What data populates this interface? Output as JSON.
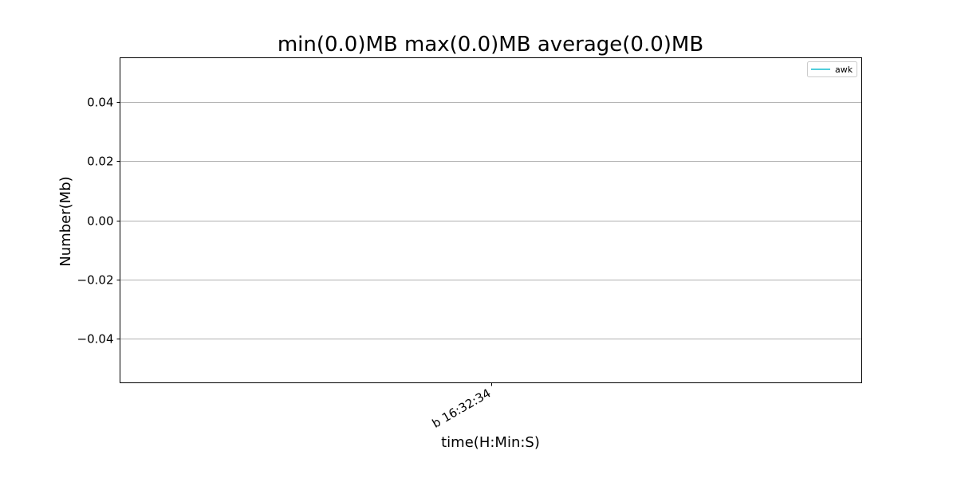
{
  "chart_data": {
    "type": "line",
    "title": "min(0.0)MB max(0.0)MB average(0.0)MB",
    "xlabel": "time(H:Min:S)",
    "ylabel": "Number(Mb)",
    "ylim": [
      -0.055,
      0.055
    ],
    "yticks": [
      0.04,
      0.02,
      0.0,
      -0.02,
      -0.04
    ],
    "ytick_labels": [
      "0.04",
      "0.02",
      "0.00",
      "−0.02",
      "−0.04"
    ],
    "x_tick_labels": [
      "b 16:32:34"
    ],
    "grid": "horizontal",
    "legend_position": "top-right",
    "series": [
      {
        "name": "awk",
        "color": "#17becf",
        "x": [
          "b 16:32:34"
        ],
        "values": [
          0.0
        ]
      }
    ]
  }
}
